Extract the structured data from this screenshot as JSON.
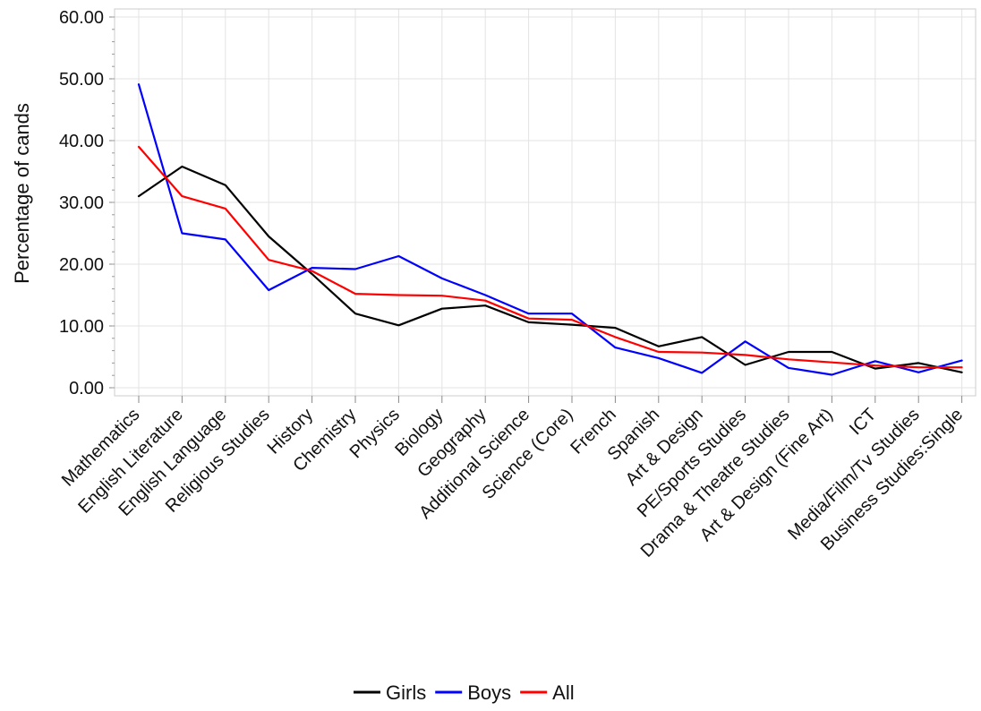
{
  "chart_data": {
    "type": "line",
    "xlabel": "",
    "ylabel": "Percentage of cands",
    "ylim": [
      0,
      60
    ],
    "yticks": [
      "0.00",
      "10.00",
      "20.00",
      "30.00",
      "40.00",
      "50.00",
      "60.00"
    ],
    "grid": true,
    "legend_position": "bottom",
    "categories": [
      "Mathematics",
      "English Literature",
      "English Language",
      "Religious Studies",
      "History",
      "Chemistry",
      "Physics",
      "Biology",
      "Geography",
      "Additional Science",
      "Science (Core)",
      "French",
      "Spanish",
      "Art & Design",
      "PE/Sports Studies",
      "Drama & Theatre Studies",
      "Art & Design (Fine Art)",
      "ICT",
      "Media/Film/Tv Studies",
      "Business  Studies:Single"
    ],
    "series": [
      {
        "name": "Girls",
        "color": "#000000",
        "values": [
          31.0,
          35.8,
          32.8,
          24.5,
          18.4,
          12.0,
          10.1,
          12.8,
          13.3,
          10.6,
          10.2,
          9.7,
          6.7,
          8.2,
          3.7,
          5.8,
          5.8,
          3.1,
          4.0,
          2.5
        ]
      },
      {
        "name": "Boys",
        "color": "#0000ff",
        "values": [
          49.1,
          25.0,
          24.0,
          15.8,
          19.4,
          19.2,
          21.3,
          17.7,
          15.0,
          12.0,
          12.0,
          6.5,
          4.8,
          2.4,
          7.5,
          3.2,
          2.1,
          4.3,
          2.5,
          4.4
        ]
      },
      {
        "name": "All",
        "color": "#ff0000",
        "values": [
          39.0,
          31.0,
          29.0,
          20.7,
          18.9,
          15.2,
          15.0,
          14.9,
          14.1,
          11.2,
          11.0,
          8.2,
          5.8,
          5.7,
          5.3,
          4.6,
          4.1,
          3.6,
          3.3,
          3.3
        ]
      }
    ]
  }
}
